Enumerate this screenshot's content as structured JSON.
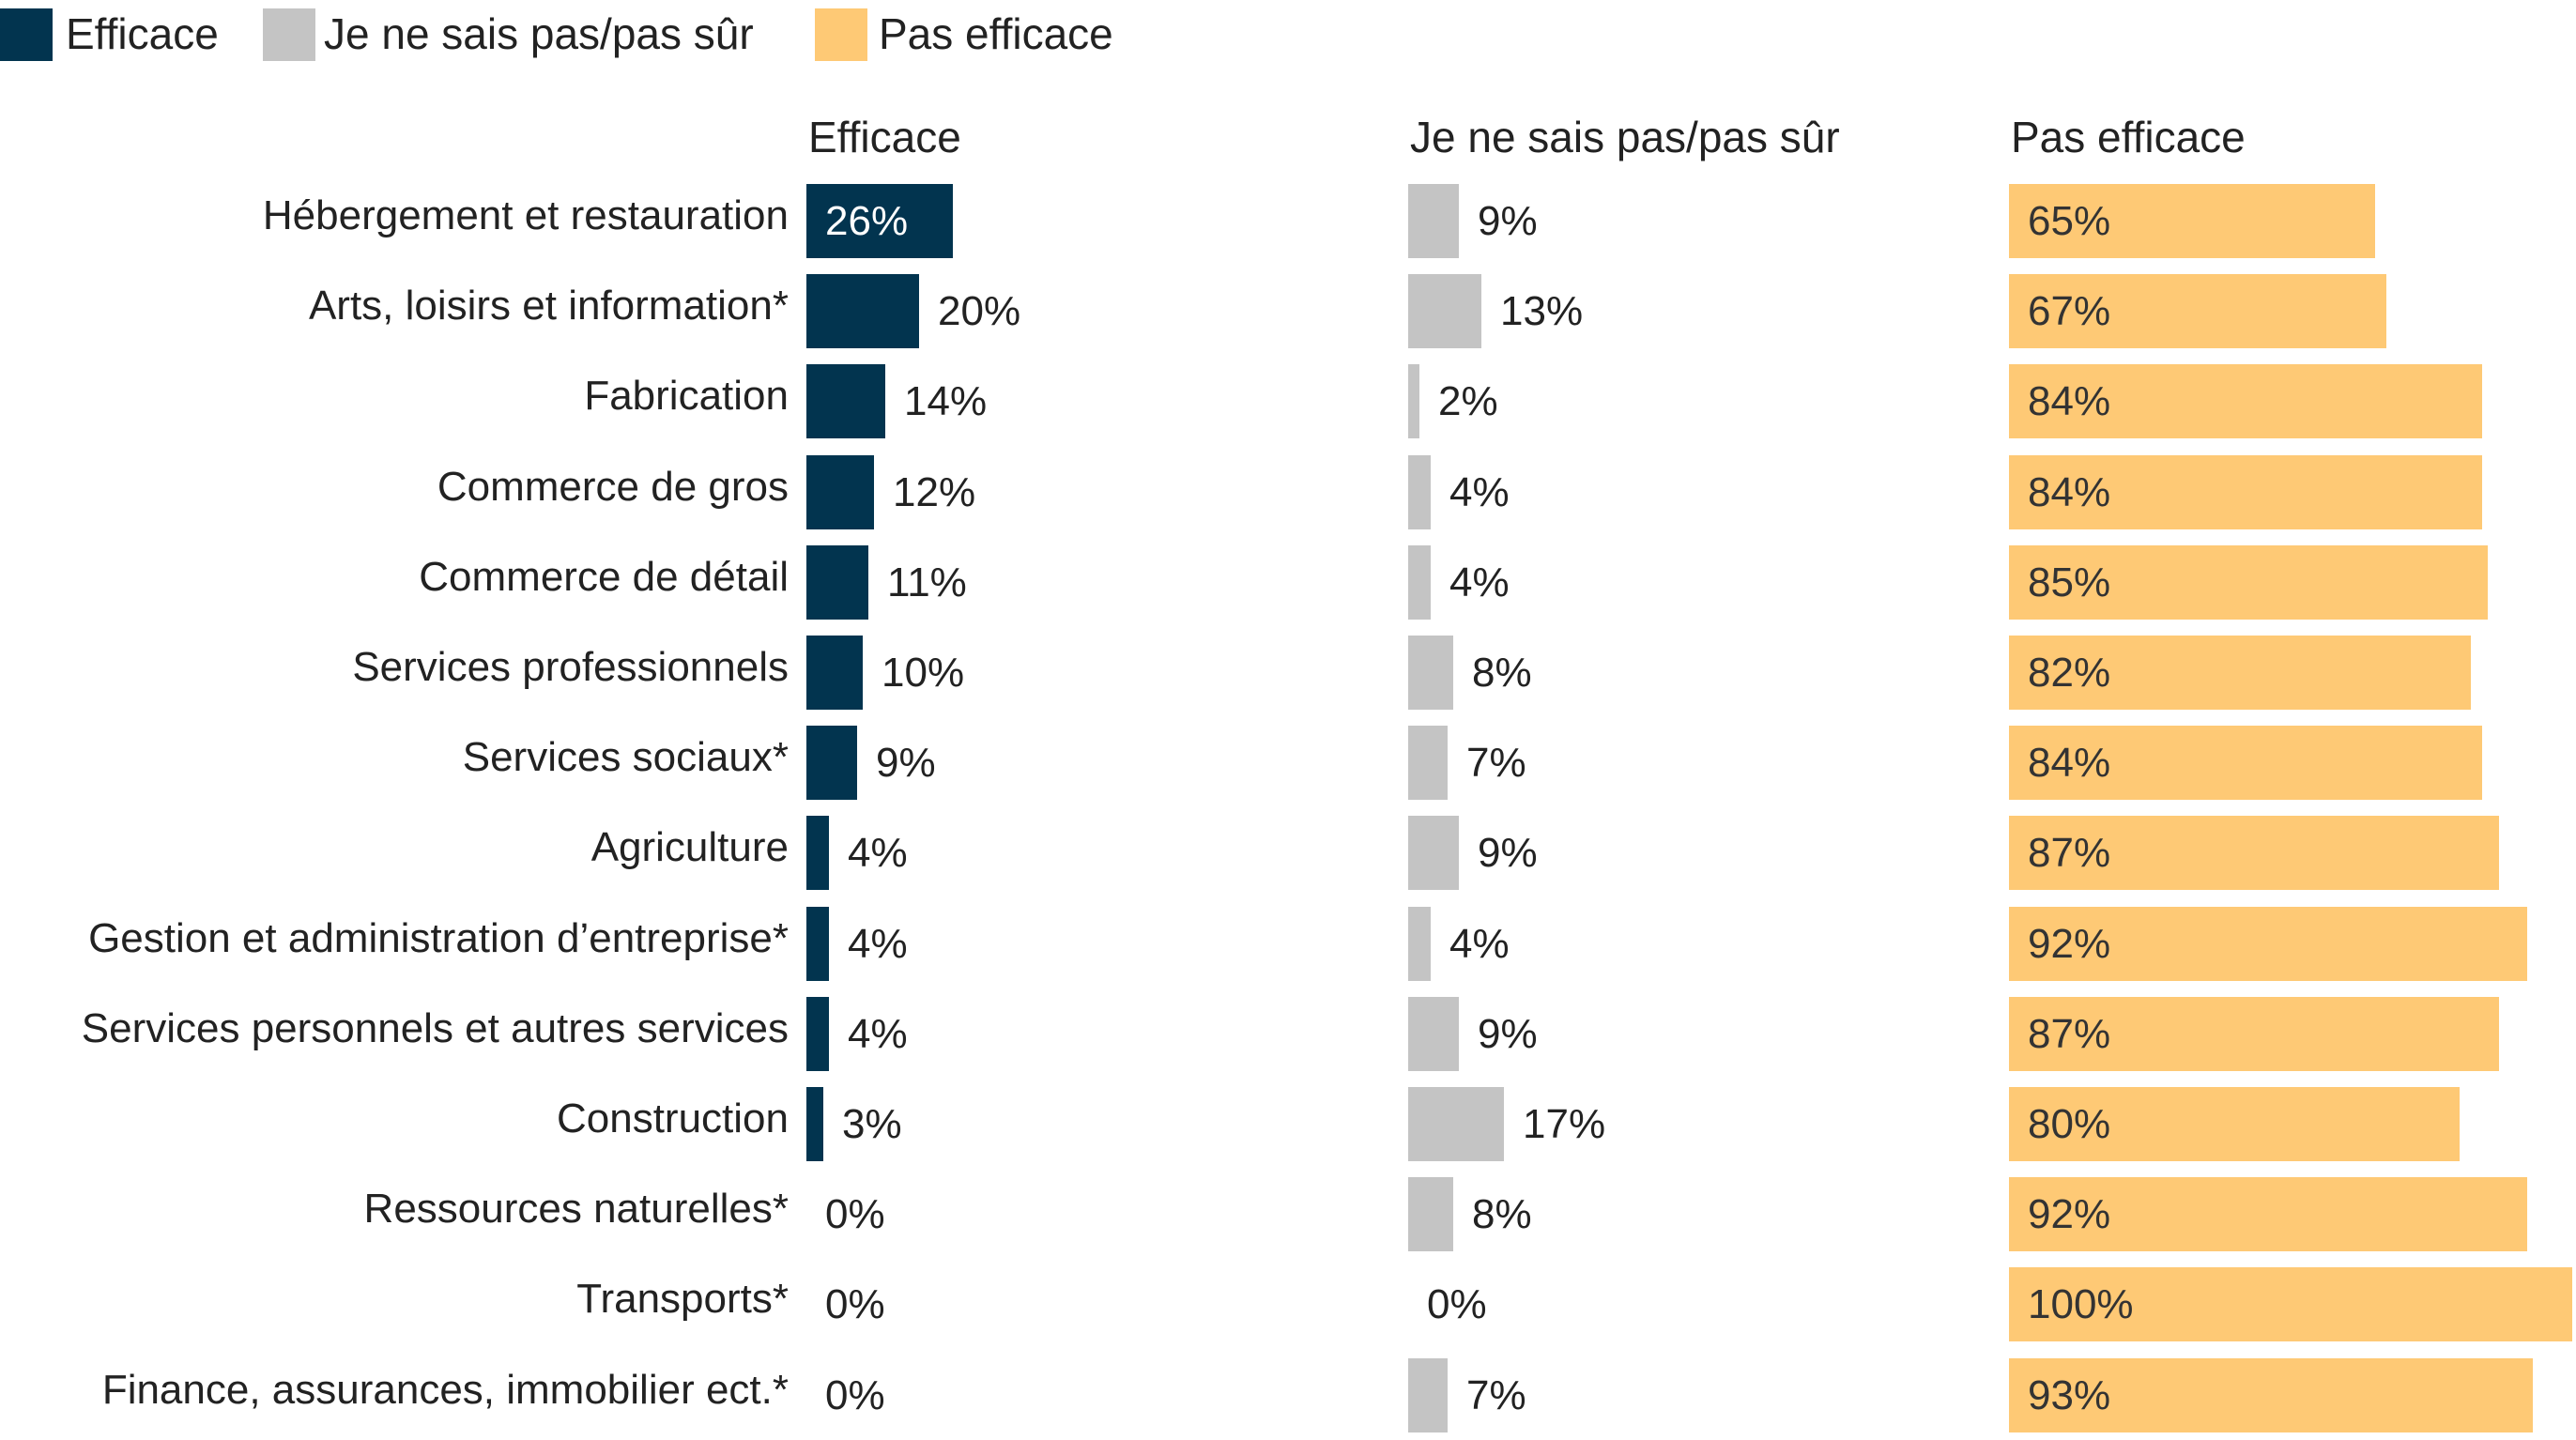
{
  "chart_data": {
    "type": "bar",
    "orientation": "horizontal",
    "layout": "small-multiples",
    "legend": {
      "placement": "top-left",
      "entries": [
        "Efficace",
        "Je ne sais pas/pas sûr",
        "Pas efficace"
      ]
    },
    "categories": [
      "Hébergement et restauration",
      "Arts, loisirs et information*",
      "Fabrication",
      "Commerce de gros",
      "Commerce de détail",
      "Services professionnels",
      "Services sociaux*",
      "Agriculture",
      "Gestion et administration d’entreprise*",
      "Services personnels et autres services",
      "Construction",
      "Ressources naturelles*",
      "Transports*",
      "Finance, assurances, immobilier ect.*"
    ],
    "series": [
      {
        "name": "Efficace",
        "color": "#02344f",
        "values": [
          26,
          20,
          14,
          12,
          11,
          10,
          9,
          4,
          4,
          4,
          3,
          0,
          0,
          0
        ]
      },
      {
        "name": "Je ne sais pas/pas sûr",
        "color": "#c4c4c4",
        "values": [
          9,
          13,
          2,
          4,
          4,
          8,
          7,
          9,
          4,
          9,
          17,
          8,
          0,
          7
        ]
      },
      {
        "name": "Pas efficace",
        "color": "#fec975",
        "values": [
          65,
          67,
          84,
          84,
          85,
          82,
          84,
          87,
          92,
          87,
          80,
          92,
          100,
          93
        ]
      }
    ],
    "unit": "%",
    "xlim": [
      0,
      100
    ],
    "grid": false
  }
}
